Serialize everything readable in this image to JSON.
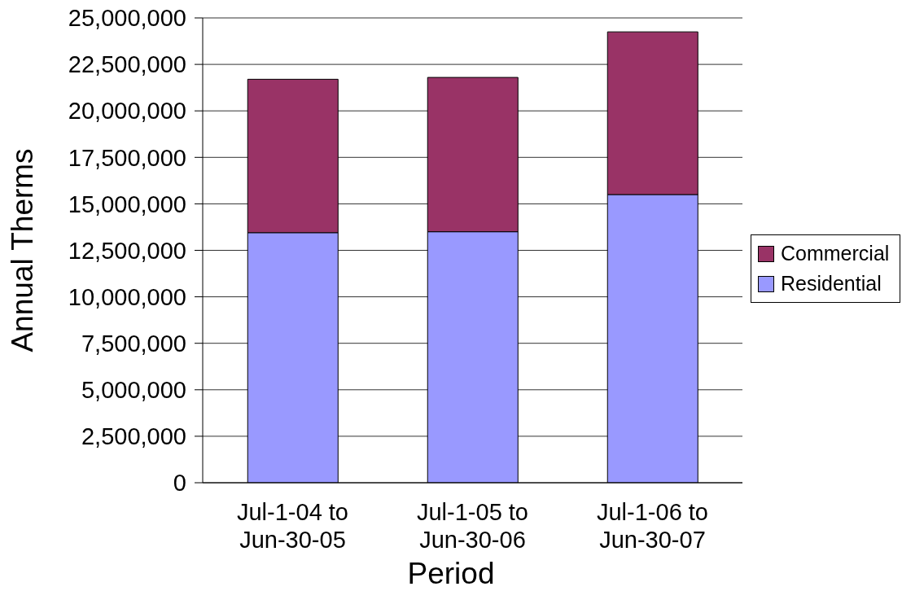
{
  "chart_data": {
    "type": "bar",
    "xlabel": "Period",
    "ylabel": "Annual Therms",
    "categories": [
      "Jul-1-04 to Jun-30-05",
      "Jul-1-05 to Jun-30-06",
      "Jul-1-06 to Jun-30-07"
    ],
    "stacked": true,
    "series": [
      {
        "name": "Residential",
        "color": "#9999ff",
        "values": [
          13450000,
          13500000,
          15500000
        ]
      },
      {
        "name": "Commercial",
        "color": "#993366",
        "values": [
          8250000,
          8300000,
          8750000
        ]
      }
    ],
    "ylim": [
      0,
      25000000
    ],
    "yticks": [
      0,
      {
        "value": 2500000,
        "label": "2,500,000"
      },
      {
        "value": 5000000,
        "label": "5,000,000"
      },
      {
        "value": 7500000,
        "label": "7,500,000"
      },
      {
        "value": 10000000,
        "label": "10,000,000"
      },
      {
        "value": 12500000,
        "label": "12,500,000"
      },
      {
        "value": 15000000,
        "label": "15,000,000"
      },
      {
        "value": 17500000,
        "label": "17,500,000"
      },
      {
        "value": 20000000,
        "label": "20,000,000"
      },
      {
        "value": 22500000,
        "label": "22,500,000"
      },
      {
        "value": 25000000,
        "label": "25,000,000"
      }
    ],
    "grid": "y",
    "legend": "right"
  }
}
